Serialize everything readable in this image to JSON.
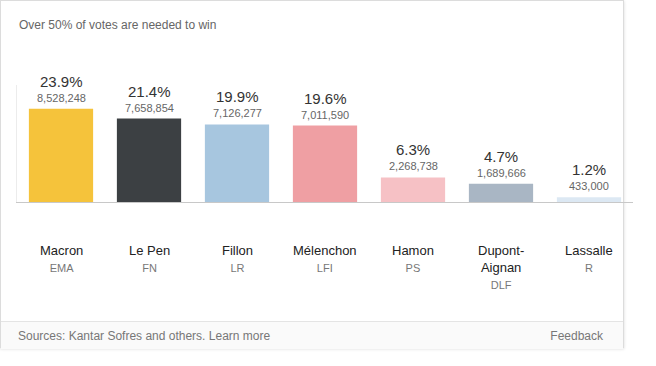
{
  "chart_data": {
    "type": "bar",
    "title": "Over 50% of votes are needed to win",
    "categories": [
      "Macron",
      "Le Pen",
      "Fillon",
      "Mélenchon",
      "Hamon",
      "Dupont-Aignan",
      "Lassalle"
    ],
    "parties": [
      "EMA",
      "FN",
      "LR",
      "LFI",
      "PS",
      "DLF",
      "R"
    ],
    "values": [
      23.9,
      21.4,
      19.9,
      19.6,
      6.3,
      4.7,
      1.2
    ],
    "value_labels": [
      "23.9%",
      "21.4%",
      "19.9%",
      "19.6%",
      "6.3%",
      "4.7%",
      "1.2%"
    ],
    "votes": [
      8528248,
      7658854,
      7126277,
      7011590,
      2268738,
      1689666,
      433000
    ],
    "vote_labels": [
      "8,528,248",
      "7,658,854",
      "7,126,277",
      "7,011,590",
      "2,268,738",
      "1,689,666",
      "433,000"
    ],
    "colors": [
      "#f5c33b",
      "#3c4043",
      "#a7c6df",
      "#ef9fa3",
      "#f6c1c5",
      "#a9b6c4",
      "#dce8f3"
    ],
    "ylim": [
      0,
      30
    ],
    "yticks": [
      0
    ],
    "grid": false,
    "data_labels": true,
    "tick_labels": false,
    "source": "Sources: Kantar Sofres and others.",
    "source_link": "Learn more",
    "feedback": "Feedback"
  }
}
